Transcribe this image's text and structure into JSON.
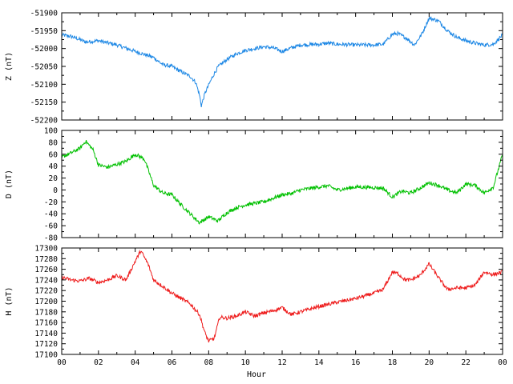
{
  "chart_data": {
    "type": "line",
    "xlabel": "Hour",
    "x_ticks": [
      "00",
      "02",
      "04",
      "06",
      "08",
      "10",
      "12",
      "14",
      "16",
      "18",
      "20",
      "22",
      "00"
    ],
    "xlim": [
      0,
      24
    ],
    "panels": [
      {
        "ylabel": "Z (nT)",
        "color": "#1e88e5",
        "ylim": [
          -52200,
          -51900
        ],
        "y_ticks": [
          -52200,
          -52150,
          -52100,
          -52050,
          -52000,
          -51950,
          -51900
        ],
        "x": [
          0,
          0.5,
          1.0,
          1.3,
          2.0,
          3.0,
          4.0,
          5.0,
          5.5,
          6.0,
          6.5,
          7.0,
          7.3,
          7.5,
          7.6,
          7.8,
          8.2,
          8.5,
          9.0,
          9.5,
          10.0,
          10.5,
          11.0,
          11.5,
          12.0,
          12.5,
          13.0,
          14.0,
          14.5,
          15.0,
          16.0,
          17.0,
          17.5,
          18.0,
          18.3,
          18.8,
          19.2,
          19.6,
          20.0,
          20.5,
          21.0,
          21.5,
          22.0,
          22.5,
          23.0,
          23.5,
          24.0
        ],
        "y": [
          -51962,
          -51966,
          -51975,
          -51982,
          -51978,
          -51990,
          -52008,
          -52025,
          -52045,
          -52050,
          -52065,
          -52078,
          -52095,
          -52130,
          -52160,
          -52125,
          -52080,
          -52052,
          -52030,
          -52015,
          -52005,
          -52000,
          -51995,
          -51998,
          -52008,
          -51998,
          -51990,
          -51988,
          -51985,
          -51988,
          -51990,
          -51990,
          -51988,
          -51960,
          -51958,
          -51972,
          -51990,
          -51960,
          -51915,
          -51922,
          -51950,
          -51968,
          -51978,
          -51985,
          -51990,
          -51988,
          -51962
        ]
      },
      {
        "ylabel": "D (nT)",
        "color": "#00c000",
        "ylim": [
          -80,
          100
        ],
        "y_ticks": [
          -80,
          -60,
          -40,
          -20,
          0,
          20,
          40,
          60,
          80,
          100
        ],
        "x": [
          0,
          0.5,
          1.0,
          1.3,
          1.7,
          2.0,
          2.5,
          3.0,
          3.5,
          4.0,
          4.5,
          5.0,
          5.5,
          6.0,
          6.5,
          7.0,
          7.5,
          8.0,
          8.5,
          9.0,
          9.5,
          10.0,
          11.0,
          12.0,
          12.5,
          13.0,
          14.0,
          14.5,
          15.0,
          16.0,
          17.0,
          17.5,
          18.0,
          18.5,
          19.0,
          19.5,
          20.0,
          20.5,
          21.0,
          21.5,
          22.0,
          22.5,
          23.0,
          23.5,
          24.0
        ],
        "y": [
          55,
          62,
          70,
          82,
          68,
          42,
          38,
          43,
          48,
          60,
          52,
          8,
          -5,
          -8,
          -25,
          -40,
          -55,
          -45,
          -52,
          -38,
          -30,
          -25,
          -20,
          -8,
          -6,
          0,
          5,
          7,
          0,
          5,
          4,
          3,
          -12,
          -2,
          -5,
          3,
          12,
          8,
          0,
          -5,
          10,
          8,
          -5,
          5,
          60
        ]
      },
      {
        "ylabel": "H (nT)",
        "color": "#ee1c1c",
        "ylim": [
          17100,
          17300
        ],
        "y_ticks": [
          17100,
          17120,
          17140,
          17160,
          17180,
          17200,
          17220,
          17240,
          17260,
          17280,
          17300
        ],
        "x": [
          0,
          0.5,
          1.0,
          1.5,
          2.0,
          2.5,
          3.0,
          3.5,
          4.0,
          4.3,
          4.7,
          5.0,
          5.5,
          6.0,
          6.5,
          7.0,
          7.5,
          7.8,
          8.0,
          8.3,
          8.6,
          9.0,
          9.5,
          10.0,
          10.5,
          11.0,
          11.5,
          12.0,
          12.5,
          13.0,
          14.0,
          15.0,
          16.0,
          17.0,
          17.5,
          18.0,
          18.3,
          18.7,
          19.0,
          19.5,
          20.0,
          20.3,
          20.6,
          21.0,
          21.5,
          22.0,
          22.5,
          23.0,
          23.5,
          24.0
        ],
        "y": [
          17245,
          17240,
          17238,
          17243,
          17235,
          17240,
          17248,
          17240,
          17275,
          17295,
          17270,
          17240,
          17228,
          17215,
          17205,
          17195,
          17175,
          17140,
          17125,
          17130,
          17170,
          17168,
          17172,
          17180,
          17172,
          17178,
          17182,
          17188,
          17175,
          17180,
          17190,
          17198,
          17205,
          17215,
          17222,
          17255,
          17252,
          17240,
          17240,
          17248,
          17270,
          17255,
          17240,
          17222,
          17225,
          17225,
          17230,
          17255,
          17250,
          17255
        ]
      }
    ]
  }
}
